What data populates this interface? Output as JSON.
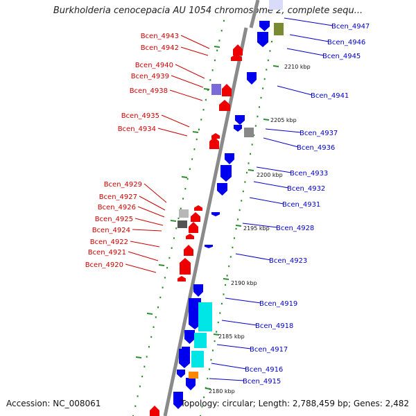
{
  "header": {
    "title": "Burkholderia cenocepacia AU 1054 chromosome 2, complete sequ..."
  },
  "footer": {
    "accession": "Accession: NC_008061",
    "stats": "Topology: circular; Length: 2,788,459 bp; Genes: 2,482"
  },
  "colors": {
    "backbone": "#8a8a8a",
    "forward_gene": "#0000ee",
    "reverse_gene": "#ee0000",
    "pseudo_gene": "#888888",
    "rna_feature": "#00e5e5",
    "orange_feature": "#ff8800",
    "olive_feature": "#7a8a30",
    "purple_feature": "#7a6ad8",
    "dots": "#2e8b2e",
    "left_label": "#cc0000",
    "right_label": "#0000cc"
  },
  "icons": [
    "forward-gene-arrow-icon",
    "reverse-gene-arrow-icon",
    "scale-tick-icon"
  ],
  "scale_labels": [
    "2210 kbp",
    "2205 kbp",
    "2200 kbp",
    "2195 kbp",
    "2190 kbp",
    "2185 kbp",
    "2180 kbp"
  ],
  "left_genes": [
    "Bcen_4943",
    "Bcen_4942",
    "Bcen_4940",
    "Bcen_4939",
    "Bcen_4938",
    "Bcen_4935",
    "Bcen_4934",
    "Bcen_4929",
    "Bcen_4927",
    "Bcen_4926",
    "Bcen_4925",
    "Bcen_4924",
    "Bcen_4922",
    "Bcen_4921",
    "Bcen_4920"
  ],
  "right_genes": [
    "Bcen_4947",
    "Bcen_4946",
    "Bcen_4945",
    "Bcen_4941",
    "Bcen_4937",
    "Bcen_4936",
    "Bcen_4933",
    "Bcen_4932",
    "Bcen_4931",
    "Bcen_4928",
    "Bcen_4923",
    "Bcen_4919",
    "Bcen_4918",
    "Bcen_4917",
    "Bcen_4916",
    "Bcen_4915"
  ]
}
